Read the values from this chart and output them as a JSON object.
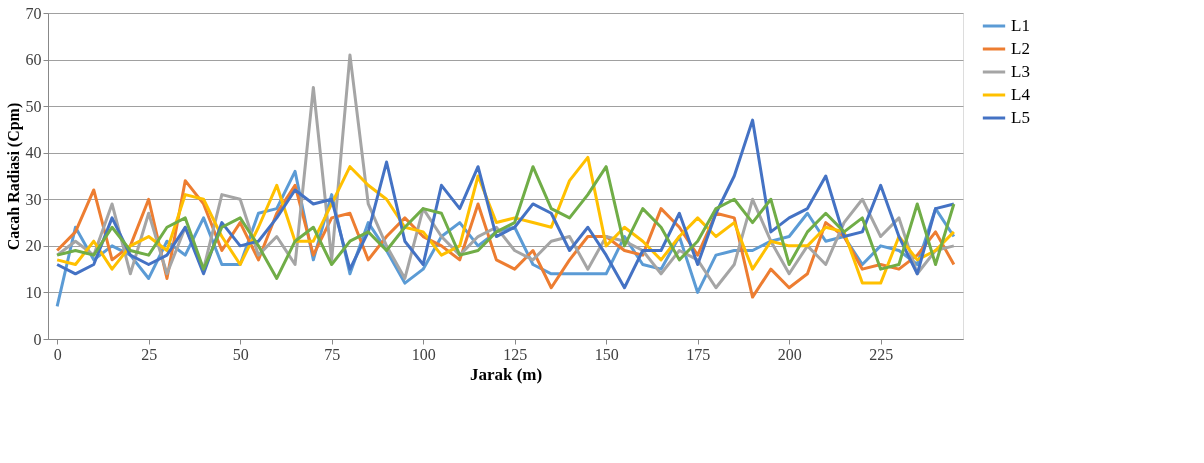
{
  "chart_data": {
    "type": "line",
    "xlabel": "Jarak (m)",
    "ylabel": "Cacah Radiasi (Cpm)",
    "x": [
      0,
      5,
      10,
      15,
      20,
      25,
      30,
      35,
      40,
      45,
      50,
      55,
      60,
      65,
      70,
      75,
      80,
      85,
      90,
      95,
      100,
      105,
      110,
      115,
      120,
      125,
      130,
      135,
      140,
      145,
      150,
      155,
      160,
      165,
      170,
      175,
      180,
      185,
      190,
      195,
      200,
      205,
      210,
      215,
      220,
      225,
      230,
      235,
      240,
      245
    ],
    "xlim": [
      -2.5,
      247.5
    ],
    "xticks": [
      0,
      25,
      50,
      75,
      100,
      125,
      150,
      175,
      200,
      225
    ],
    "ylim": [
      0,
      70
    ],
    "yticks": [
      0,
      10,
      20,
      30,
      40,
      50,
      60,
      70
    ],
    "grid": "y",
    "legend": "right",
    "line_style": "solid",
    "marker": "none",
    "series": [
      {
        "name": "L1",
        "color": "#5b9bd5",
        "values": [
          7,
          24,
          17,
          20,
          18,
          13,
          21,
          18,
          26,
          16,
          16,
          27,
          28,
          36,
          17,
          31,
          14,
          25,
          19,
          12,
          15,
          22,
          25,
          20,
          23,
          24,
          16,
          14,
          14,
          14,
          14,
          22,
          16,
          15,
          22,
          10,
          18,
          19,
          19,
          21,
          22,
          27,
          21,
          22,
          16,
          20,
          19,
          16,
          28,
          22
        ]
      },
      {
        "name": "L2",
        "color": "#ed7d31",
        "values": [
          19,
          23,
          32,
          17,
          20,
          30,
          13,
          34,
          29,
          19,
          25,
          17,
          27,
          33,
          18,
          26,
          27,
          17,
          22,
          26,
          22,
          20,
          17,
          29,
          17,
          15,
          19,
          11,
          17,
          22,
          22,
          19,
          18,
          28,
          24,
          18,
          27,
          26,
          9,
          15,
          11,
          14,
          25,
          22,
          15,
          16,
          15,
          18,
          23,
          16
        ]
      },
      {
        "name": "L3",
        "color": "#a5a5a5",
        "values": [
          18,
          21,
          18,
          29,
          14,
          27,
          14,
          24,
          15,
          31,
          30,
          18,
          22,
          16,
          54,
          17,
          61,
          29,
          20,
          13,
          28,
          22,
          18,
          22,
          24,
          19,
          17,
          21,
          22,
          15,
          22,
          21,
          19,
          14,
          19,
          17,
          11,
          16,
          30,
          21,
          14,
          20,
          16,
          25,
          30,
          22,
          26,
          14,
          19,
          20
        ]
      },
      {
        "name": "L4",
        "color": "#ffc000",
        "values": [
          17,
          16,
          21,
          15,
          20,
          22,
          19,
          31,
          30,
          22,
          16,
          24,
          33,
          21,
          21,
          29,
          37,
          33,
          30,
          24,
          23,
          18,
          20,
          35,
          25,
          26,
          25,
          24,
          34,
          39,
          20,
          24,
          21,
          17,
          22,
          26,
          22,
          25,
          15,
          21,
          20,
          20,
          24,
          23,
          12,
          12,
          22,
          17,
          19,
          23
        ]
      },
      {
        "name": "L5",
        "color": "#4472c4",
        "values": [
          16,
          14,
          16,
          26,
          18,
          16,
          18,
          24,
          14,
          25,
          20,
          21,
          26,
          32,
          29,
          30,
          15,
          23,
          38,
          21,
          16,
          33,
          28,
          37,
          22,
          24,
          29,
          27,
          19,
          24,
          18,
          11,
          19,
          19,
          27,
          16,
          27,
          35,
          47,
          23,
          26,
          28,
          35,
          22,
          23,
          33,
          22,
          14,
          28,
          29
        ]
      },
      {
        "color": "#70ad47",
        "values": [
          18,
          19,
          18,
          24,
          19,
          18,
          24,
          26,
          15,
          24,
          26,
          20,
          13,
          21,
          24,
          16,
          21,
          23,
          19,
          24,
          28,
          27,
          18,
          19,
          23,
          25,
          37,
          28,
          26,
          31,
          37,
          20,
          28,
          24,
          17,
          21,
          28,
          30,
          25,
          30,
          16,
          23,
          27,
          23,
          26,
          15,
          16,
          29,
          16,
          29
        ]
      }
    ]
  }
}
